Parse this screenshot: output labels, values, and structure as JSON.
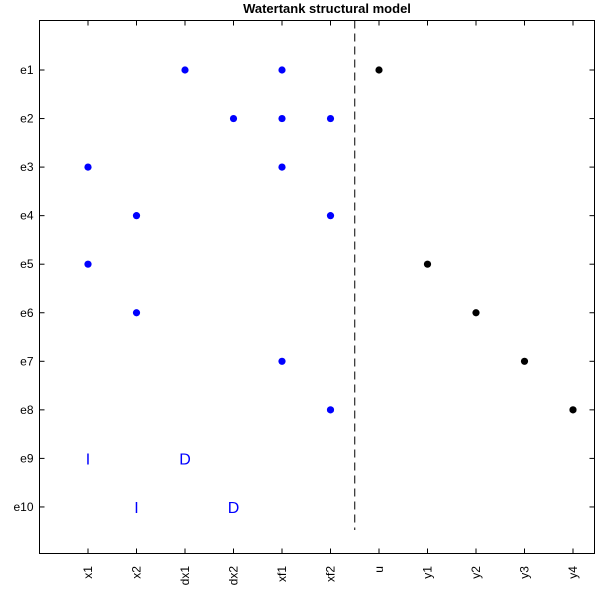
{
  "chart_data": {
    "type": "scatter",
    "title": "Watertank structural model",
    "xlabel": "",
    "ylabel": "",
    "x_categories": [
      "x1",
      "x2",
      "dx1",
      "dx2",
      "xf1",
      "xf2",
      "u",
      "y1",
      "y2",
      "y3",
      "y4"
    ],
    "y_categories": [
      "e1",
      "e2",
      "e3",
      "e4",
      "e5",
      "e6",
      "e7",
      "e8",
      "e9",
      "e10"
    ],
    "divider_after": "xf2",
    "grid": false,
    "series": [
      {
        "color": "#0000ff",
        "points": [
          {
            "x": "dx1",
            "y": "e1"
          },
          {
            "x": "xf1",
            "y": "e1"
          },
          {
            "x": "dx2",
            "y": "e2"
          },
          {
            "x": "xf1",
            "y": "e2"
          },
          {
            "x": "xf2",
            "y": "e2"
          },
          {
            "x": "x1",
            "y": "e3"
          },
          {
            "x": "xf1",
            "y": "e3"
          },
          {
            "x": "x2",
            "y": "e4"
          },
          {
            "x": "xf2",
            "y": "e4"
          },
          {
            "x": "x1",
            "y": "e5"
          },
          {
            "x": "x2",
            "y": "e6"
          },
          {
            "x": "xf1",
            "y": "e7"
          },
          {
            "x": "xf2",
            "y": "e8"
          }
        ]
      },
      {
        "color": "#000000",
        "points": [
          {
            "x": "u",
            "y": "e1"
          },
          {
            "x": "y1",
            "y": "e5"
          },
          {
            "x": "y2",
            "y": "e6"
          },
          {
            "x": "y3",
            "y": "e7"
          },
          {
            "x": "y4",
            "y": "e8"
          }
        ]
      }
    ],
    "annotations": [
      {
        "x": "x1",
        "y": "e9",
        "text": "I",
        "color": "#0000ff"
      },
      {
        "x": "dx1",
        "y": "e9",
        "text": "D",
        "color": "#0000ff"
      },
      {
        "x": "x2",
        "y": "e10",
        "text": "I",
        "color": "#0000ff"
      },
      {
        "x": "dx2",
        "y": "e10",
        "text": "D",
        "color": "#0000ff"
      }
    ]
  }
}
